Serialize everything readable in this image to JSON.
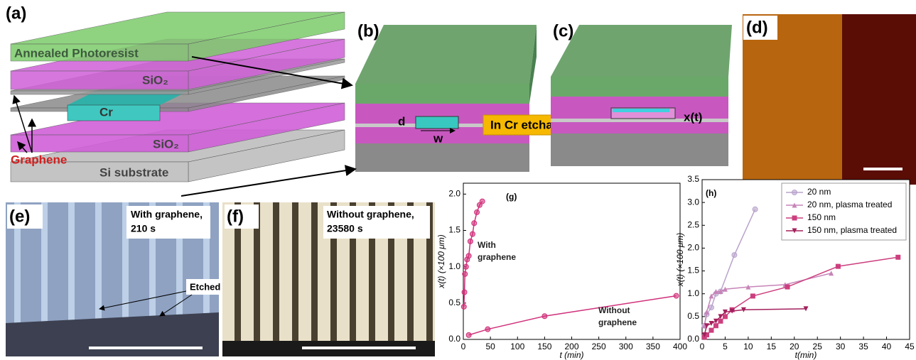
{
  "panels": {
    "a": {
      "label": "(a)",
      "photoresist": "Annealed Photoresist",
      "sio2_top": "SiO₂",
      "cr": "Cr",
      "graphene": "Graphene",
      "sio2_bottom": "SiO₂",
      "substrate": "Si substrate"
    },
    "b": {
      "label": "(b)",
      "d": "d",
      "w": "w"
    },
    "etchant": "In Cr etchant",
    "c": {
      "label": "(c)",
      "x": "x(t)"
    },
    "d": {
      "label": "(d)"
    },
    "e": {
      "label": "(e)",
      "caption": [
        "With graphene,",
        "210 s"
      ],
      "annotation": "Etched Cr"
    },
    "f": {
      "label": "(f)",
      "caption": [
        "Without graphene,",
        "23580 s"
      ]
    }
  },
  "chart_data": [
    {
      "type": "line",
      "title": "(g)",
      "xlabel": "t (min)",
      "ylabel": "x(t) (×100 μm)",
      "xlim": [
        0,
        400
      ],
      "ylim": [
        0,
        2.15
      ],
      "xticks": [
        0,
        50,
        100,
        150,
        200,
        250,
        300,
        350,
        400
      ],
      "yticks": [
        {
          "value": 0,
          "label": "0.0"
        },
        0.5,
        {
          "value": 1,
          "label": "1.0"
        },
        1.5,
        {
          "value": 2,
          "label": "2.0"
        }
      ],
      "annotations": [
        [
          "With",
          "graphene"
        ],
        [
          "Without",
          "graphene"
        ]
      ],
      "series": [
        {
          "color": "#d0307a",
          "marker": "circle",
          "x": [
            1,
            2,
            3,
            5,
            7,
            10,
            13,
            17,
            20,
            25,
            30,
            35
          ],
          "values": [
            0.45,
            0.65,
            0.9,
            1.0,
            1.1,
            1.15,
            1.35,
            1.45,
            1.6,
            1.75,
            1.85,
            1.9
          ]
        },
        {
          "color": "#d0307a",
          "marker": "circle",
          "x": [
            10,
            45,
            150,
            393
          ],
          "values": [
            0.06,
            0.14,
            0.32,
            0.6
          ]
        }
      ]
    },
    {
      "type": "line",
      "title": "(h)",
      "xlabel": "t(min)",
      "ylabel": "x(t) (×100 μm)",
      "legend": "upper right",
      "xlim": [
        0,
        45
      ],
      "ylim": [
        0,
        3.5
      ],
      "xticks": [
        0,
        5,
        10,
        15,
        20,
        25,
        30,
        35,
        40,
        45
      ],
      "yticks": [
        {
          "value": 0,
          "label": "0.0"
        },
        0.5,
        {
          "value": 1,
          "label": "1.0"
        },
        1.5,
        {
          "value": 2,
          "label": "2.0"
        },
        2.5,
        {
          "value": 3,
          "label": "3.0"
        },
        3.5
      ],
      "series": [
        {
          "name": "20 nm",
          "color": "#b9a3cc",
          "marker": "circle",
          "x": [
            0.5,
            1,
            2,
            3,
            4,
            7,
            11.5
          ],
          "values": [
            0.3,
            0.55,
            0.7,
            1.0,
            1.05,
            1.85,
            2.85
          ]
        },
        {
          "name": "20 nm, plasma treated",
          "color": "#c784b8",
          "marker": "triangle",
          "x": [
            0.5,
            1,
            2,
            3,
            4,
            5,
            10,
            18,
            28
          ],
          "values": [
            0.3,
            0.6,
            0.95,
            1.05,
            1.05,
            1.1,
            1.15,
            1.2,
            1.45
          ]
        },
        {
          "name": "150 nm",
          "color": "#cc3f7e",
          "marker": "square",
          "x": [
            0.5,
            1,
            2,
            3,
            4,
            5,
            6.5,
            11,
            18.5,
            29.5,
            42.5
          ],
          "values": [
            0.05,
            0.1,
            0.2,
            0.3,
            0.4,
            0.5,
            0.65,
            0.95,
            1.15,
            1.6,
            1.8
          ]
        },
        {
          "name": "150 nm, plasma treated",
          "color": "#a3205c",
          "marker": "triangle-down",
          "x": [
            0.5,
            1,
            2,
            3,
            4,
            5,
            6.5,
            9,
            22.5
          ],
          "values": [
            0.1,
            0.3,
            0.35,
            0.4,
            0.5,
            0.6,
            0.62,
            0.65,
            0.67
          ]
        }
      ]
    }
  ]
}
